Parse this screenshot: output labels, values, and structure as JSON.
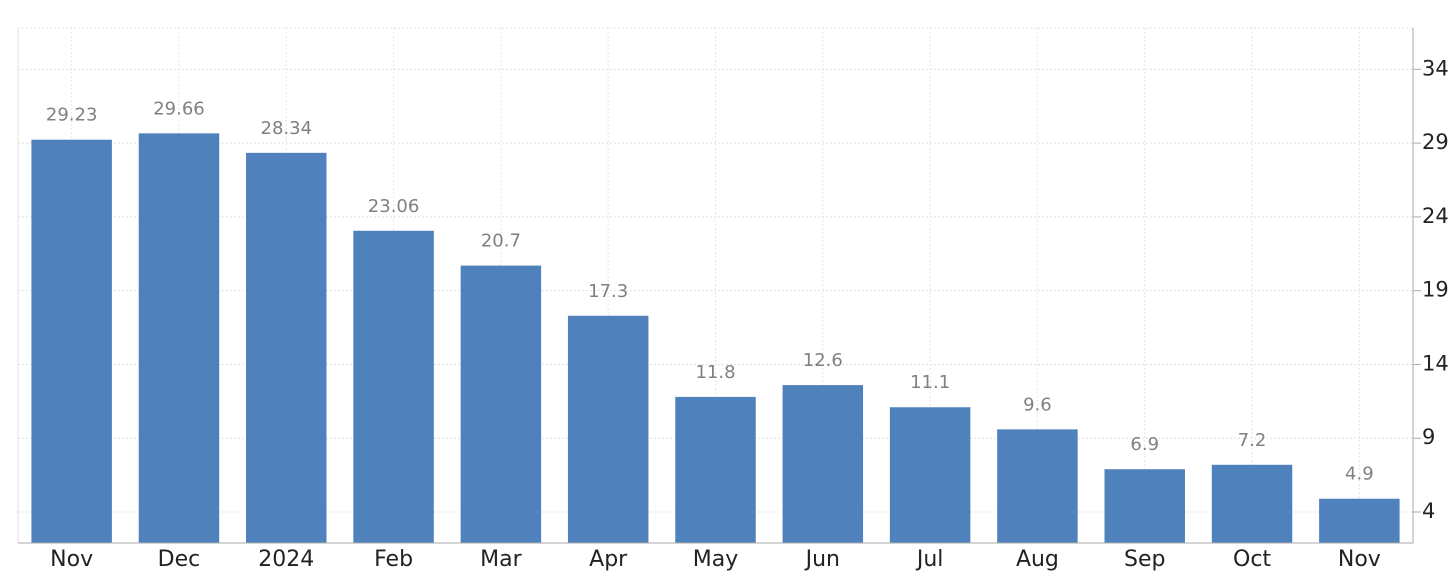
{
  "chart_data": {
    "type": "bar",
    "categories": [
      "Nov",
      "Dec",
      "2024",
      "Feb",
      "Mar",
      "Apr",
      "May",
      "Jun",
      "Jul",
      "Aug",
      "Sep",
      "Oct",
      "Nov"
    ],
    "values": [
      29.23,
      29.66,
      28.34,
      23.06,
      20.7,
      17.3,
      11.8,
      12.6,
      11.1,
      9.6,
      6.9,
      7.2,
      4.9
    ],
    "color": "#4f81bd",
    "ylim": [
      1.9,
      36.8
    ],
    "yticks": [
      4,
      9,
      14,
      19,
      24,
      29,
      34
    ],
    "grid": true
  }
}
